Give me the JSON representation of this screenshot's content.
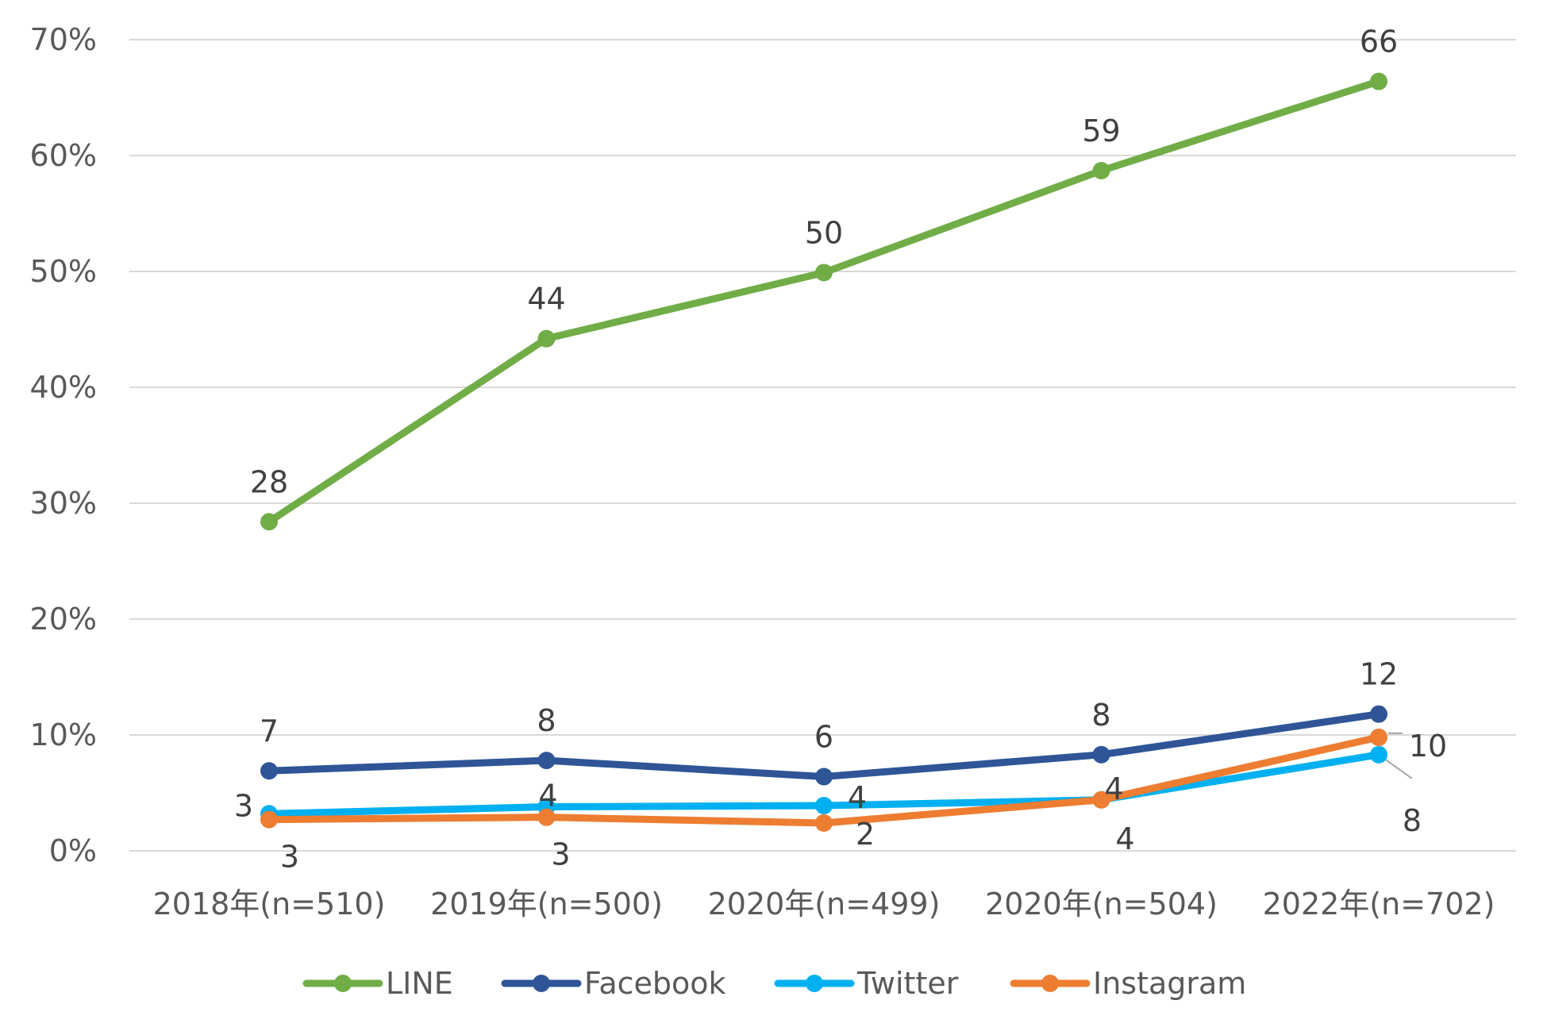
{
  "chart_data": {
    "type": "line",
    "categories": [
      "2018年(n=510)",
      "2019年(n=500)",
      "2020年(n=499)",
      "2020年(n=504)",
      "2022年(n=702)"
    ],
    "y_ticks": [
      "0%",
      "10%",
      "20%",
      "30%",
      "40%",
      "50%",
      "60%",
      "70%"
    ],
    "ylim": [
      0,
      70
    ],
    "grid": true,
    "legend_position": "bottom",
    "series": [
      {
        "name": "LINE",
        "color": "#70ad47",
        "values": [
          28.4,
          44.2,
          49.9,
          58.7,
          66.4
        ],
        "labels": [
          "28",
          "44",
          "50",
          "59",
          "66"
        ]
      },
      {
        "name": "Facebook",
        "color": "#2f5597",
        "values": [
          6.9,
          7.8,
          6.4,
          8.3,
          11.8
        ],
        "labels": [
          "7",
          "8",
          "6",
          "8",
          "12"
        ]
      },
      {
        "name": "Twitter",
        "color": "#00b0f0",
        "values": [
          3.2,
          3.8,
          3.9,
          4.4,
          8.3
        ],
        "labels": [
          "3",
          "4",
          "4",
          "4",
          "8"
        ]
      },
      {
        "name": "Instagram",
        "color": "#ed7d31",
        "values": [
          2.7,
          2.9,
          2.4,
          4.4,
          9.8
        ],
        "labels": [
          "3",
          "3",
          "2",
          "4",
          "10"
        ]
      }
    ]
  }
}
